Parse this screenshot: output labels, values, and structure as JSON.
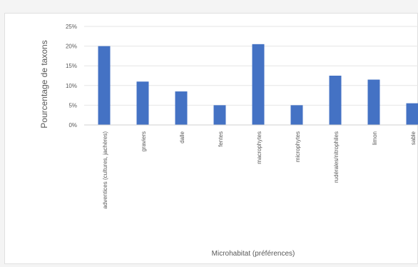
{
  "chart_data": {
    "type": "bar",
    "title": "",
    "ylabel": "Pourcentage de taxons",
    "xlabel": "Microhabitat (préférences)",
    "y_ticks": [
      "0%",
      "5%",
      "10%",
      "15%",
      "20%",
      "25%"
    ],
    "ylim": [
      0,
      25
    ],
    "grid": true,
    "categories": [
      "adventices (cultures, jachères)",
      "graviers",
      "dalle",
      "fentes",
      "macrophytes",
      "microphytes",
      "rudérales/nitrophiles",
      "limon",
      "sable"
    ],
    "values": [
      20,
      11,
      8.5,
      5,
      20.5,
      5,
      12.5,
      11.5,
      5.5
    ],
    "colors": {
      "bar": "#4472c4",
      "grid": "#e6e6e6",
      "axis": "#d0d0d0",
      "text": "#595959"
    }
  }
}
